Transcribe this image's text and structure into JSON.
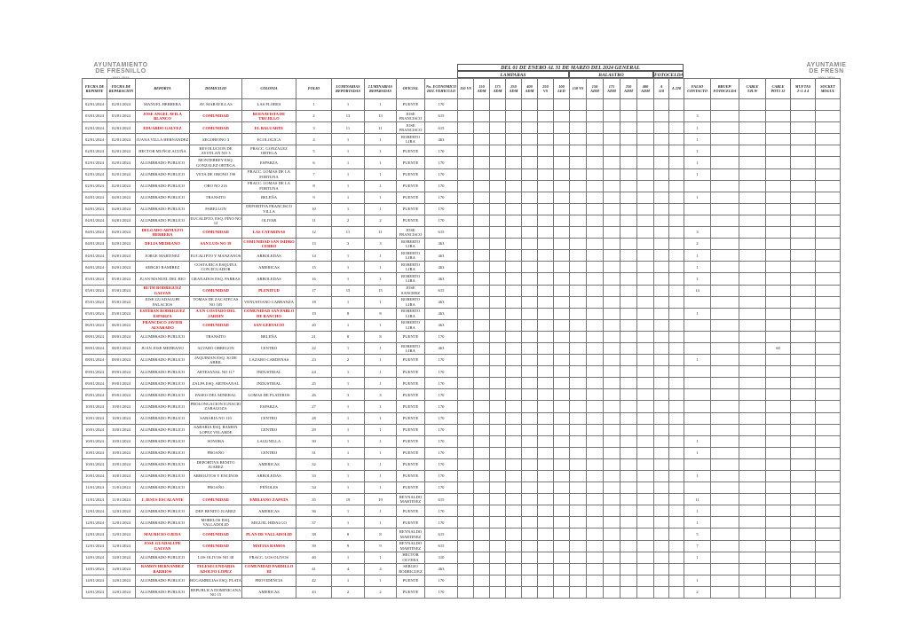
{
  "logo_left": {
    "line1": "AYUNTAMIENTO",
    "line2": "DE FRESNILLO",
    "line3": "2021-2024"
  },
  "logo_right": {
    "line1": "AYUNTAMIE",
    "line2": "DE FRESN",
    "line3": "2021-2024"
  },
  "title": "DEL 01 DE ENERO AL 31 DE MARZO DEL 2024   GENERAL",
  "groups": {
    "lamparas": "LAMPARAS",
    "balastro": "BALASTRO",
    "fotocelda": "FOTOCELDA"
  },
  "columns": [
    "FECHA DE\nREPORTE",
    "FECHA DE\nREPARACION",
    "REPORTA",
    "DOMICILIO",
    "COLONIA",
    "FOLIO",
    "LUMINARIAS\nREPORTADAS",
    "LUMINARIAS\nREPARADAS",
    "OFICIAL",
    "No. ECONOMICO\nDEL VEHICULO",
    "150 VS",
    "150\nADM",
    "175\nADM",
    "250\nADM",
    "400\nADM",
    "250\nVS",
    "100\nLED",
    "150 VS",
    "150\nADM",
    "175\nADM",
    "250\nADM",
    "400\nADM",
    "A\n110",
    "A 220",
    "FALSO\nCONTACTO",
    "BRUEP/\nFOTOCELDA",
    "CABLE\nT.H.W",
    "CABLE\nPOT3 12",
    "MUFTAS\n2+1 4 4",
    "SOCKET\nMOGUL"
  ],
  "rows": [
    {
      "cells": [
        "02/01/2024",
        "02/01/2024",
        "MANUEL HERRERA",
        "AV. MARAVILLAS",
        "LAS FLORES",
        1,
        1,
        1,
        "PUENTE",
        170
      ]
    },
    {
      "cells": [
        "03/01/2024",
        "03/01/2024",
        "JOSE ANGEL AVILA BLANCO",
        "COMUNIDAD",
        "BUENAVISTA DE TRUJILLO",
        2,
        13,
        13,
        "JOSE FRANCISCO",
        615
      ],
      "red": true,
      "falso_contacto": 3
    },
    {
      "cells": [
        "02/01/2024",
        "02/01/2024",
        "EDUARDO GALVEZ",
        "COMUNIDAD",
        "EL BALUARTE",
        3,
        11,
        11,
        "JOSE FRANCISCO",
        615
      ],
      "red": true,
      "falso_contacto": 1
    },
    {
      "cells": [
        "02/01/2024",
        "02/01/2024",
        "JUANA VILLA HERNANDEZ",
        "SEGOBIONO 3",
        "ECOLOGICA",
        4,
        1,
        1,
        "ROBERTO LIRA",
        463
      ],
      "falso_contacto": 1
    },
    {
      "cells": [
        "02/01/2024",
        "02/01/2024",
        "HECTOR MUÑOZ ACUÑA",
        "REVOLUCION DE AYOTLAN NO 3",
        "FRACC. GONZALEZ ORTEGA",
        5,
        1,
        1,
        "PUENTE",
        170
      ],
      "falso_contacto": 1
    },
    {
      "cells": [
        "02/01/2024",
        "02/01/2024",
        "ALUMBRADO PUBLICO",
        "MONTERREY ESQ. GONZALEZ ORTEGA",
        "ESPARZA",
        6,
        1,
        1,
        "PUENTE",
        170
      ],
      "falso_contacto": 1
    },
    {
      "cells": [
        "02/01/2024",
        "02/01/2024",
        "ALUMBRADO PUBLICO",
        "VETA DE ORONO 190",
        "FRACC. LOMAS DE LA FORTUNA",
        7,
        1,
        1,
        "PUENTE",
        170
      ],
      "falso_contacto": 1
    },
    {
      "cells": [
        "02/01/2024",
        "02/01/2024",
        "ALUMBRADO PUBLICO",
        "ORO NO 216",
        "FRACC. LOMAS DE LA FORTUNA",
        8,
        1,
        1,
        "PUENTE",
        170
      ]
    },
    {
      "cells": [
        "04/01/2024",
        "04/01/2024",
        "ALUMBRADO PUBLICO",
        "TRANSITO",
        "BELEÑA",
        9,
        1,
        1,
        "PUENTE",
        170
      ],
      "falso_contacto": 1
    },
    {
      "cells": [
        "04/01/2024",
        "04/01/2024",
        "ALUMBRADO PUBLICO",
        "PABELLON",
        "DEPORTIVA FRANCISCO VILLA",
        10,
        1,
        1,
        "PUENTE",
        170
      ]
    },
    {
      "cells": [
        "04/01/2024",
        "04/01/2024",
        "ALUMBRADO PUBLICO",
        "EUCALIPTO, ESQ. PINO NO 12",
        "OLIVAR",
        11,
        2,
        2,
        "PUENTE",
        170
      ]
    },
    {
      "cells": [
        "04/01/2024",
        "04/01/2024",
        "DELGADO ARNULFO HERRERA",
        "COMUNIDAD",
        "LAS CATARINAS",
        12,
        11,
        11,
        "JOSE FRANCISCO",
        615
      ],
      "red": true,
      "falso_contacto": 3
    },
    {
      "cells": [
        "04/01/2024",
        "04/01/2024",
        "DELIA MEDRANO",
        "SAN LUIS NO 19",
        "COMUNIDAD SAN ISIDRO CERRO",
        13,
        3,
        3,
        "ROBERTO LIRA",
        463
      ],
      "red": true,
      "falso_contacto": 2
    },
    {
      "cells": [
        "04/01/2024",
        "04/01/2024",
        "JORGE MARTINEZ",
        "EUCALIPTO Y MANZANOS",
        "ARBOLEDAS",
        14,
        1,
        1,
        "ROBERTO LIRA",
        463
      ],
      "falso_contacto": 1
    },
    {
      "cells": [
        "04/01/2024",
        "04/01/2024",
        "SERGIO RAMIREZ",
        "COSTA RICA ESQUINA CON ECUADOR",
        "AMERICAS",
        15,
        1,
        1,
        "ROBERTO LIRA",
        463
      ],
      "falso_contacto": 1
    },
    {
      "cells": [
        "05/01/2024",
        "05/01/2024",
        "JUAN MANUEL DEL RIO",
        "GRANADOS ESQ. PARRAS",
        "ARBOLEDAS",
        16,
        1,
        1,
        "ROBERTO LIRA",
        463
      ],
      "falso_contacto": 1
    },
    {
      "cells": [
        "05/01/2024",
        "05/01/2024",
        "RUTH RODRIGUEZ GALVAN",
        "COMUNIDAD",
        "PLENITUD",
        17,
        15,
        15,
        "JOSE SANCHEZ",
        615
      ],
      "red": true,
      "falso_contacto": 14
    },
    {
      "cells": [
        "05/01/2024",
        "05/01/2024",
        "JOSE GUADALUPE PALACIOS",
        "TOMAS DE ZACATECAS NO 105",
        "VENUSTIANO CARRANZA",
        18,
        1,
        1,
        "ROBERTO LIRA",
        463
      ]
    },
    {
      "cells": [
        "05/01/2024",
        "05/01/2024",
        "ESTEBAN RODRIGUEZ ESPARZA",
        "A UN COSTADO DEL JARDIN",
        "COMUNIDAD SAN PABLO DE RANCHO",
        19,
        8,
        8,
        "ROBERTO LIRA",
        463
      ],
      "red": true,
      "falso_contacto": 1
    },
    {
      "cells": [
        "06/01/2024",
        "06/01/2024",
        "FRANCISCO JAVIER ALVARADO",
        "COMUNIDAD",
        "SAN GERVACIO",
        20,
        1,
        1,
        "ROBERTO LIRA",
        463
      ],
      "red": true
    },
    {
      "cells": [
        "08/01/2024",
        "08/01/2024",
        "ALUMBRADO PUBLICO",
        "TRANSITO",
        "BELEÑA",
        21,
        8,
        8,
        "PUENTE",
        170
      ]
    },
    {
      "cells": [
        "08/01/2024",
        "08/01/2024",
        "JUAN JOSE MEDRANO",
        "ALVARO OBREGON",
        "CENTRO",
        22,
        1,
        1,
        "ROBERTO LIRA",
        463
      ],
      "cable_pot3_12": 60
    },
    {
      "cells": [
        "08/01/2024",
        "08/01/2024",
        "ALUMBRADO PUBLICO",
        "JAQUIMAN ESQ. 30 DE ABRIL",
        "LAZARO CARDENAS",
        23,
        2,
        1,
        "PUENTE",
        170
      ],
      "falso_contacto": 1
    },
    {
      "cells": [
        "09/01/2024",
        "09/01/2024",
        "ALUMBRADO PUBLICO",
        "ARTESANAL NO 117",
        "INDUSTRIAL",
        24,
        1,
        1,
        "PUENTE",
        170
      ]
    },
    {
      "cells": [
        "09/01/2024",
        "09/01/2024",
        "ALUMBRADO PUBLICO",
        "ZALPA ESQ. ARTESANAL",
        "INDUSTRIAL",
        25,
        1,
        1,
        "PUENTE",
        170
      ]
    },
    {
      "cells": [
        "09/01/2024",
        "09/01/2024",
        "ALUMBRADO PUBLICO",
        "PASEO DEL MINERAL",
        "LOMAS DE PLATEROS",
        26,
        3,
        3,
        "PUENTE",
        170
      ]
    },
    {
      "cells": [
        "10/01/2024",
        "10/01/2024",
        "ALUMBRADO PUBLICO",
        "PROLONGACION IGNACIO ZARAGOZA",
        "ESPARZA",
        27,
        1,
        1,
        "PUENTE",
        170
      ]
    },
    {
      "cells": [
        "10/01/2024",
        "10/01/2024",
        "ALUMBRADO PUBLICO",
        "SABARIA NO 110",
        "CENTRO",
        28,
        1,
        1,
        "PUENTE",
        170
      ]
    },
    {
      "cells": [
        "10/01/2024",
        "10/01/2024",
        "ALUMBRADO PUBLICO",
        "SABARIA ESQ. RAMON LOPEZ VELARDE",
        "CENTRO",
        29,
        1,
        1,
        "PUENTE",
        170
      ]
    },
    {
      "cells": [
        "10/01/2024",
        "10/01/2024",
        "ALUMBRADO PUBLICO",
        "SONORA",
        "LAGUNILLA",
        30,
        1,
        1,
        "PUENTE",
        170
      ],
      "falso_contacto": 1
    },
    {
      "cells": [
        "10/01/2024",
        "10/01/2024",
        "ALUMBRADO PUBLICO",
        "PROAÑO",
        "CENTRO",
        31,
        1,
        1,
        "PUENTE",
        170
      ],
      "falso_contacto": 1
    },
    {
      "cells": [
        "10/01/2024",
        "10/01/2024",
        "ALUMBRADO PUBLICO",
        "DEPORTIVA BENITO JUAREZ",
        "AMERICAS",
        32,
        1,
        1,
        "PUENTE",
        170
      ]
    },
    {
      "cells": [
        "10/01/2024",
        "10/01/2024",
        "ALUMBRADO PUBLICO",
        "ARBOLITOS Y ENCINOS",
        "ARBOLEDAS",
        33,
        1,
        1,
        "PUENTE",
        170
      ],
      "falso_contacto": 1
    },
    {
      "cells": [
        "11/01/2024",
        "11/01/2024",
        "ALUMBRADO PUBLICO",
        "PROAÑO",
        "PEÑOLES",
        34,
        1,
        1,
        "PUENTE",
        170
      ]
    },
    {
      "cells": [
        "11/01/2024",
        "11/01/2024",
        "J. JESUS ESCALANTE",
        "COMUNIDAD",
        "EMILIANO ZAPATA",
        35,
        19,
        19,
        "REYNALDO MARTINEZ",
        615
      ],
      "red": true,
      "falso_contacto": 11
    },
    {
      "cells": [
        "12/01/2024",
        "12/01/2024",
        "ALUMBRADO PUBLICO",
        "DEP. BENITO JUAREZ",
        "AMERICAS",
        36,
        1,
        1,
        "PUENTE",
        170
      ],
      "falso_contacto": 1
    },
    {
      "cells": [
        "12/01/2024",
        "12/01/2024",
        "ALUMBRADO PUBLICO",
        "MORELOS ESQ. VALLADOLID",
        "MIGUEL HIDALGO",
        37,
        1,
        1,
        "PUENTE",
        170
      ],
      "falso_contacto": 1
    },
    {
      "cells": [
        "12/01/2024",
        "12/01/2024",
        "MAURICIO OJEDA",
        "COMUNIDAD",
        "PLAN DE VALLADOLID",
        38,
        8,
        8,
        "REYNALDO MARTINEZ",
        615
      ],
      "red": true,
      "falso_contacto": 5
    },
    {
      "cells": [
        "12/01/2024",
        "12/01/2024",
        "JOSE GUADALUPE GALVAN",
        "COMUNIDAD",
        "MATIAS RAMOS",
        39,
        9,
        9,
        "REYNALDO MARTINEZ",
        615
      ],
      "red": true,
      "falso_contacto": 7
    },
    {
      "cells": [
        "14/01/2024",
        "14/01/2024",
        "ALUMBRADO PUBLICO",
        "LOS OLIVOS NO 38",
        "FRACC. LOS OLIVOS",
        40,
        1,
        1,
        "HECTOR OLVERA",
        310
      ],
      "falso_contacto": 1
    },
    {
      "cells": [
        "14/01/2024",
        "14/01/2024",
        "RAMON HERNANDEZ BARRIOS",
        "TELESECUNDARIA ADOLFO LOPEZ",
        "COMUNIDAD PARDILLO III",
        41,
        4,
        4,
        "SERGIO RODRIGUEZ",
        463
      ],
      "red": true
    },
    {
      "cells": [
        "14/01/2024",
        "14/01/2024",
        "ALUMBRADO PUBLICO",
        "BUGAMBILIAS ESQ. PLATA",
        "PROVIDENCIA",
        42,
        1,
        1,
        "PUENTE",
        170
      ],
      "falso_contacto": 1
    },
    {
      "cells": [
        "14/01/2024",
        "14/01/2024",
        "ALUMBRADO PUBLICO",
        "REPUBLICA DOMINICANA NO 15",
        "AMERICAS",
        43,
        2,
        2,
        "PUENTE",
        170
      ],
      "falso_contacto": 2
    }
  ]
}
